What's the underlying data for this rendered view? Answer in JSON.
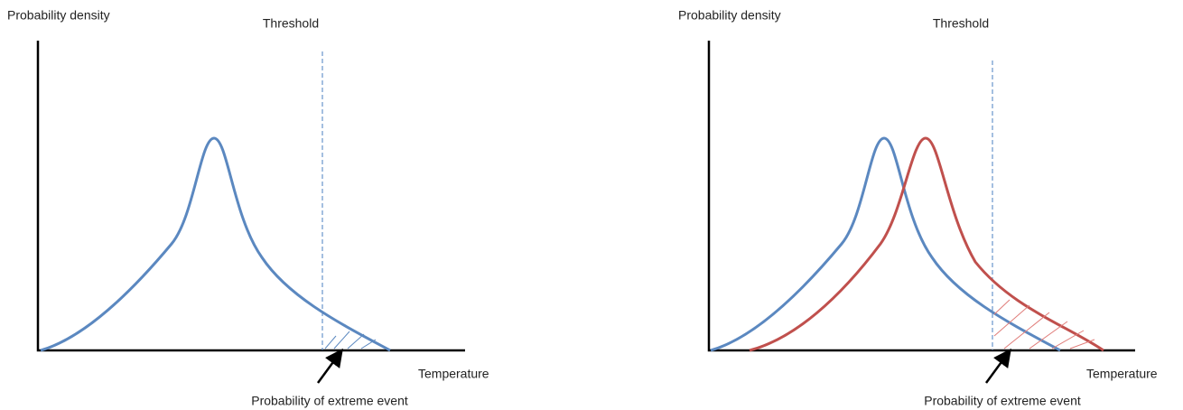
{
  "panels": [
    {
      "y_axis_label": "Probability density",
      "threshold_label": "Threshold",
      "x_axis_label": "Temperature",
      "annotation": "Probability of extreme event"
    },
    {
      "y_axis_label": "Probability density",
      "threshold_label": "Threshold",
      "x_axis_label": "Temperature",
      "annotation": "Probability of extreme event"
    }
  ]
}
